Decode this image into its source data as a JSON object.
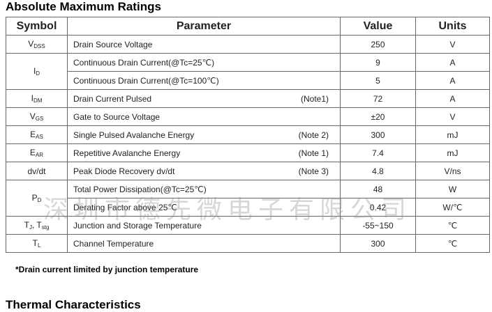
{
  "title": "Absolute Maximum Ratings",
  "table": {
    "header": [
      "Symbol",
      "Parameter",
      "Value",
      "Units"
    ],
    "rows": [
      {
        "symbol": [
          {
            "t": "V"
          },
          {
            "sub": "DSS"
          }
        ],
        "params": [
          {
            "text": "Drain Source Voltage",
            "value": "250",
            "unit": "V"
          }
        ]
      },
      {
        "symbol": [
          {
            "t": "I"
          },
          {
            "sub": "D"
          }
        ],
        "params": [
          {
            "text": "Continuous Drain Current(@Tc=25℃)",
            "value": "9",
            "unit": "A"
          },
          {
            "text": "Continuous Drain Current(@Tc=100℃)",
            "value": "5",
            "unit": "A"
          }
        ]
      },
      {
        "symbol": [
          {
            "t": "I"
          },
          {
            "sub": "DM"
          }
        ],
        "params": [
          {
            "text": "Drain Current Pulsed",
            "note": "(Note1)",
            "value": "72",
            "unit": "A"
          }
        ]
      },
      {
        "symbol": [
          {
            "t": "V"
          },
          {
            "sub": "GS"
          }
        ],
        "params": [
          {
            "text": "Gate to Source Voltage",
            "value": "±20",
            "unit": "V"
          }
        ]
      },
      {
        "symbol": [
          {
            "t": "E"
          },
          {
            "sub": "AS"
          }
        ],
        "params": [
          {
            "text": "Single Pulsed Avalanche Energy",
            "note": "(Note 2)",
            "value": "300",
            "unit": "mJ"
          }
        ]
      },
      {
        "symbol": [
          {
            "t": "E"
          },
          {
            "sub": "AR"
          }
        ],
        "params": [
          {
            "text": "Repetitive Avalanche Energy",
            "note": "(Note 1)",
            "value": "7.4",
            "unit": "mJ"
          }
        ]
      },
      {
        "symbol": [
          {
            "t": "dv/dt"
          }
        ],
        "params": [
          {
            "text": "Peak Diode Recovery dv/dt",
            "note": "(Note 3)",
            "value": "4.8",
            "unit": "V/ns"
          }
        ]
      },
      {
        "symbol": [
          {
            "t": "P"
          },
          {
            "sub": "D"
          }
        ],
        "params": [
          {
            "text": "Total Power Dissipation(@Tc=25℃)",
            "value": "48",
            "unit": "W"
          },
          {
            "text": "Derating Factor above 25℃",
            "value": "0.42",
            "unit": "W/℃"
          }
        ]
      },
      {
        "symbol": [
          {
            "t": "T"
          },
          {
            "sub": "J"
          },
          {
            "t": ", T"
          },
          {
            "sub": "stg"
          }
        ],
        "params": [
          {
            "text": "Junction and Storage Temperature",
            "value": "-55~150",
            "unit": "℃"
          }
        ]
      },
      {
        "symbol": [
          {
            "t": "T"
          },
          {
            "sub": "L"
          }
        ],
        "params": [
          {
            "text": "Channel Temperature",
            "value": "300",
            "unit": "℃"
          }
        ]
      }
    ]
  },
  "footnote": "*Drain current limited by junction temperature",
  "section2_title": "Thermal Characteristics",
  "watermark": "深圳市德先微电子有限公司"
}
